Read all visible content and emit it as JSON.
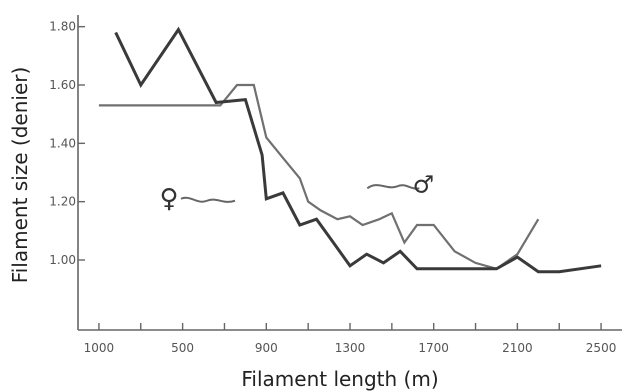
{
  "chart_data": {
    "type": "line",
    "title": "",
    "xlabel": "Filament length (m)",
    "ylabel": "Filament size (denier)",
    "x_tick_labels": [
      "1000",
      "500",
      "900",
      "1300",
      "1700",
      "2100",
      "2500"
    ],
    "x_tick_positions": [
      0,
      2,
      4,
      6,
      8,
      10,
      12
    ],
    "y_ticks": [
      1.0,
      1.2,
      1.4,
      1.6,
      1.8
    ],
    "y_tick_labels": [
      "1.00",
      "1.20",
      "1.40",
      "1.60",
      "1.80"
    ],
    "xlim": [
      -0.5,
      12.5
    ],
    "ylim": [
      0.76,
      1.84
    ],
    "grid": false,
    "series": [
      {
        "name": "♂",
        "color": "#707070",
        "values": [
          [
            0.0,
            1.53
          ],
          [
            1.0,
            1.53
          ],
          [
            2.0,
            1.53
          ],
          [
            2.9,
            1.53
          ],
          [
            3.3,
            1.6
          ],
          [
            3.7,
            1.6
          ],
          [
            4.0,
            1.42
          ],
          [
            4.4,
            1.35
          ],
          [
            4.8,
            1.28
          ],
          [
            5.0,
            1.2
          ],
          [
            5.3,
            1.17
          ],
          [
            5.7,
            1.14
          ],
          [
            6.0,
            1.15
          ],
          [
            6.3,
            1.12
          ],
          [
            6.7,
            1.14
          ],
          [
            7.0,
            1.16
          ],
          [
            7.3,
            1.06
          ],
          [
            7.6,
            1.12
          ],
          [
            8.0,
            1.12
          ],
          [
            8.5,
            1.03
          ],
          [
            9.0,
            0.99
          ],
          [
            9.5,
            0.97
          ],
          [
            10.0,
            1.02
          ],
          [
            10.5,
            1.14
          ]
        ]
      },
      {
        "name": "♀",
        "color": "#3a3a3a",
        "values": [
          [
            0.4,
            1.78
          ],
          [
            1.0,
            1.6
          ],
          [
            1.9,
            1.79
          ],
          [
            2.8,
            1.54
          ],
          [
            3.5,
            1.55
          ],
          [
            3.9,
            1.36
          ],
          [
            4.0,
            1.21
          ],
          [
            4.4,
            1.23
          ],
          [
            4.8,
            1.12
          ],
          [
            5.2,
            1.14
          ],
          [
            5.6,
            1.06
          ],
          [
            6.0,
            0.98
          ],
          [
            6.4,
            1.02
          ],
          [
            6.8,
            0.99
          ],
          [
            7.2,
            1.03
          ],
          [
            7.6,
            0.97
          ],
          [
            8.0,
            0.97
          ],
          [
            8.5,
            0.97
          ],
          [
            9.0,
            0.97
          ],
          [
            9.5,
            0.97
          ],
          [
            10.0,
            1.01
          ],
          [
            10.5,
            0.96
          ],
          [
            11.0,
            0.96
          ],
          [
            12.0,
            0.98
          ]
        ]
      }
    ],
    "annotations": [
      {
        "symbol": "♂",
        "x": 7.8,
        "y": 1.28,
        "marks": "male"
      },
      {
        "symbol": "♀",
        "x": 2.2,
        "y": 1.21,
        "marks": "female"
      }
    ]
  }
}
